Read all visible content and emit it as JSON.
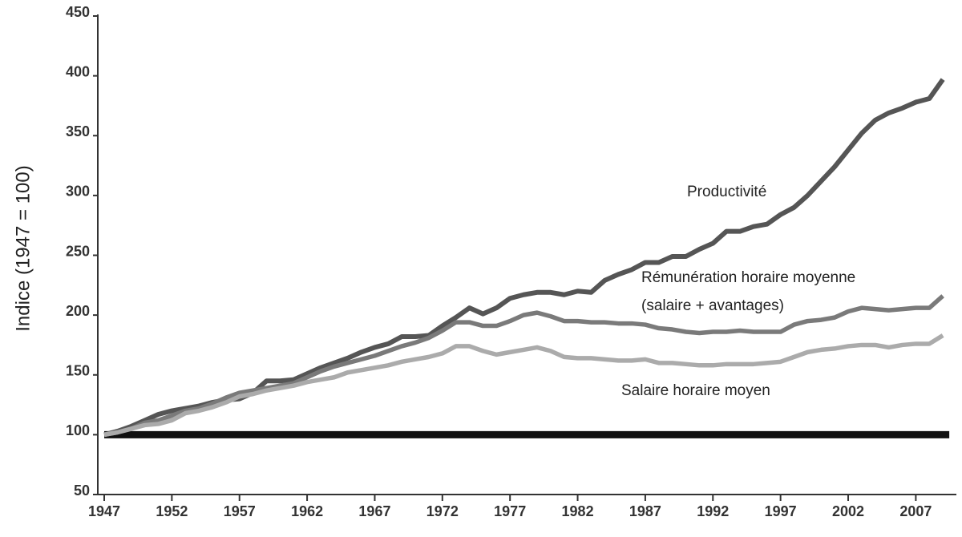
{
  "chart_data": {
    "type": "line",
    "y_label": "Indice (1947 = 100)",
    "x": [
      1947,
      1948,
      1949,
      1950,
      1951,
      1952,
      1953,
      1954,
      1955,
      1956,
      1957,
      1958,
      1959,
      1960,
      1961,
      1962,
      1963,
      1964,
      1965,
      1966,
      1967,
      1968,
      1969,
      1970,
      1971,
      1972,
      1973,
      1974,
      1975,
      1976,
      1977,
      1978,
      1979,
      1980,
      1981,
      1982,
      1983,
      1984,
      1985,
      1986,
      1987,
      1988,
      1989,
      1990,
      1991,
      1992,
      1993,
      1994,
      1995,
      1996,
      1997,
      1998,
      1999,
      2000,
      2001,
      2002,
      2003,
      2004,
      2005,
      2006,
      2007,
      2008,
      2009
    ],
    "series": [
      {
        "name": "Productivité",
        "color": "#555555",
        "values": [
          100,
          103,
          107,
          112,
          117,
          120,
          122,
          124,
          127,
          129,
          130,
          135,
          145,
          145,
          146,
          151,
          156,
          160,
          164,
          169,
          173,
          176,
          182,
          182,
          183,
          191,
          198,
          206,
          201,
          206,
          214,
          217,
          219,
          219,
          217,
          220,
          219,
          229,
          234,
          238,
          244,
          244,
          249,
          249,
          255,
          260,
          270,
          270,
          274,
          276,
          284,
          290,
          300,
          312,
          324,
          338,
          352,
          363,
          369,
          373,
          378,
          381,
          397
        ]
      },
      {
        "name": "Rémunération horaire moyenne (salaire + avantages)",
        "color": "#7a7a7a",
        "values": [
          100,
          102,
          105,
          110,
          112,
          116,
          120,
          122,
          126,
          131,
          135,
          137,
          139,
          141,
          143,
          148,
          153,
          157,
          160,
          163,
          166,
          170,
          174,
          177,
          181,
          187,
          194,
          194,
          191,
          191,
          195,
          200,
          202,
          199,
          195,
          195,
          194,
          194,
          193,
          193,
          192,
          189,
          188,
          186,
          185,
          186,
          186,
          187,
          186,
          186,
          186,
          192,
          195,
          196,
          198,
          203,
          206,
          205,
          204,
          205,
          206,
          206,
          216
        ]
      },
      {
        "name": "Salaire horaire moyen",
        "color": "#ababab",
        "values": [
          100,
          102,
          105,
          108,
          109,
          112,
          118,
          120,
          123,
          127,
          132,
          134,
          137,
          139,
          141,
          144,
          146,
          148,
          152,
          154,
          156,
          158,
          161,
          163,
          165,
          168,
          174,
          174,
          170,
          167,
          169,
          171,
          173,
          170,
          165,
          164,
          164,
          163,
          162,
          162,
          163,
          160,
          160,
          159,
          158,
          158,
          159,
          159,
          159,
          160,
          161,
          165,
          169,
          171,
          172,
          174,
          175,
          175,
          173,
          175,
          176,
          176,
          183
        ]
      }
    ],
    "reference_line": 100,
    "reference_color": "#111111",
    "xlim": [
      1947,
      2010
    ],
    "xticks": [
      1947,
      1952,
      1957,
      1962,
      1967,
      1972,
      1977,
      1982,
      1987,
      1992,
      1997,
      2002,
      2007
    ],
    "ylim": [
      50,
      450
    ],
    "yticks": [
      50,
      100,
      150,
      200,
      250,
      300,
      350,
      400,
      450
    ]
  }
}
